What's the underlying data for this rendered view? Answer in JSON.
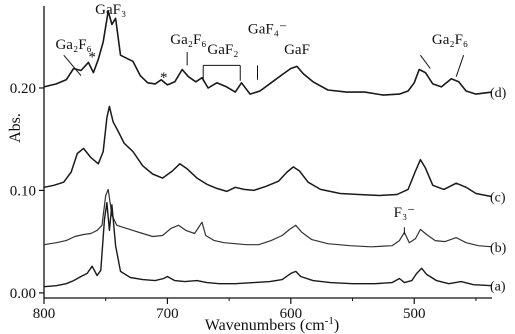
{
  "chart_data": {
    "type": "line",
    "xlabel": "Wavenumbers (cm",
    "xlabel_sup": "-1",
    "xlabel_close": ")",
    "ylabel": "Abs.",
    "xlim": [
      800,
      437
    ],
    "ylim": [
      -0.005,
      0.28
    ],
    "x_ticks": [
      {
        "value": 800,
        "label": "800"
      },
      {
        "value": 700,
        "label": "700"
      },
      {
        "value": 600,
        "label": "600"
      },
      {
        "value": 500,
        "label": "500"
      }
    ],
    "y_ticks": [
      {
        "value": 0.0,
        "label": "0.00"
      },
      {
        "value": 0.1,
        "label": "0.10"
      },
      {
        "value": 0.2,
        "label": "0.20"
      }
    ],
    "annotations": [
      {
        "label": "GaF₃",
        "x": 746,
        "y": 0.272
      },
      {
        "label": "Ga₂F₆",
        "x": 776,
        "y": 0.238
      },
      {
        "label": "*",
        "x": 761,
        "y": 0.226
      },
      {
        "label": "Ga₂F₆",
        "x": 683,
        "y": 0.243
      },
      {
        "label": "*",
        "x": 703,
        "y": 0.206
      },
      {
        "label": "GaF₂",
        "x": 655,
        "y": 0.233
      },
      {
        "label": "GaF₄⁻",
        "x": 619,
        "y": 0.253
      },
      {
        "label": "GaF",
        "x": 595,
        "y": 0.233
      },
      {
        "label": "Ga₂F₆",
        "x": 471,
        "y": 0.243
      },
      {
        "label": "F₃⁻",
        "x": 508,
        "y": 0.074
      }
    ],
    "series": [
      {
        "name": "(d)",
        "color": "#1a1a1a",
        "width": 1.6,
        "points": [
          [
            800,
            0.201
          ],
          [
            790,
            0.204
          ],
          [
            782,
            0.208
          ],
          [
            776,
            0.219
          ],
          [
            770,
            0.217
          ],
          [
            764,
            0.225
          ],
          [
            760,
            0.215
          ],
          [
            756,
            0.228
          ],
          [
            752,
            0.245
          ],
          [
            748,
            0.275
          ],
          [
            745,
            0.262
          ],
          [
            742,
            0.268
          ],
          [
            738,
            0.232
          ],
          [
            733,
            0.229
          ],
          [
            728,
            0.226
          ],
          [
            722,
            0.212
          ],
          [
            716,
            0.205
          ],
          [
            710,
            0.204
          ],
          [
            705,
            0.208
          ],
          [
            700,
            0.203
          ],
          [
            694,
            0.206
          ],
          [
            688,
            0.218
          ],
          [
            683,
            0.211
          ],
          [
            677,
            0.206
          ],
          [
            672,
            0.21
          ],
          [
            667,
            0.2
          ],
          [
            660,
            0.205
          ],
          [
            652,
            0.201
          ],
          [
            645,
            0.196
          ],
          [
            640,
            0.205
          ],
          [
            633,
            0.194
          ],
          [
            625,
            0.197
          ],
          [
            616,
            0.205
          ],
          [
            607,
            0.213
          ],
          [
            600,
            0.219
          ],
          [
            595,
            0.221
          ],
          [
            590,
            0.214
          ],
          [
            582,
            0.206
          ],
          [
            570,
            0.198
          ],
          [
            555,
            0.196
          ],
          [
            540,
            0.196
          ],
          [
            525,
            0.193
          ],
          [
            512,
            0.194
          ],
          [
            505,
            0.197
          ],
          [
            500,
            0.205
          ],
          [
            496,
            0.218
          ],
          [
            491,
            0.215
          ],
          [
            485,
            0.204
          ],
          [
            478,
            0.201
          ],
          [
            470,
            0.209
          ],
          [
            464,
            0.206
          ],
          [
            458,
            0.197
          ],
          [
            450,
            0.194
          ],
          [
            437,
            0.196
          ]
        ]
      },
      {
        "name": "(c)",
        "color": "#1a1a1a",
        "width": 1.5,
        "points": [
          [
            800,
            0.103
          ],
          [
            792,
            0.105
          ],
          [
            784,
            0.108
          ],
          [
            778,
            0.118
          ],
          [
            773,
            0.136
          ],
          [
            768,
            0.141
          ],
          [
            762,
            0.132
          ],
          [
            756,
            0.126
          ],
          [
            752,
            0.138
          ],
          [
            749,
            0.171
          ],
          [
            747,
            0.182
          ],
          [
            744,
            0.167
          ],
          [
            740,
            0.158
          ],
          [
            735,
            0.146
          ],
          [
            728,
            0.138
          ],
          [
            720,
            0.124
          ],
          [
            712,
            0.116
          ],
          [
            704,
            0.112
          ],
          [
            696,
            0.119
          ],
          [
            690,
            0.126
          ],
          [
            684,
            0.121
          ],
          [
            676,
            0.112
          ],
          [
            668,
            0.106
          ],
          [
            660,
            0.102
          ],
          [
            652,
            0.099
          ],
          [
            645,
            0.103
          ],
          [
            638,
            0.101
          ],
          [
            630,
            0.1
          ],
          [
            620,
            0.104
          ],
          [
            610,
            0.109
          ],
          [
            603,
            0.118
          ],
          [
            598,
            0.123
          ],
          [
            593,
            0.119
          ],
          [
            586,
            0.108
          ],
          [
            576,
            0.101
          ],
          [
            560,
            0.097
          ],
          [
            545,
            0.096
          ],
          [
            528,
            0.095
          ],
          [
            514,
            0.096
          ],
          [
            505,
            0.101
          ],
          [
            499,
            0.119
          ],
          [
            495,
            0.13
          ],
          [
            491,
            0.122
          ],
          [
            485,
            0.105
          ],
          [
            476,
            0.101
          ],
          [
            466,
            0.107
          ],
          [
            458,
            0.103
          ],
          [
            450,
            0.097
          ],
          [
            437,
            0.094
          ]
        ]
      },
      {
        "name": "(b)",
        "color": "#333333",
        "width": 1.2,
        "points": [
          [
            800,
            0.047
          ],
          [
            790,
            0.049
          ],
          [
            782,
            0.051
          ],
          [
            775,
            0.055
          ],
          [
            768,
            0.057
          ],
          [
            762,
            0.058
          ],
          [
            757,
            0.061
          ],
          [
            753,
            0.066
          ],
          [
            750,
            0.095
          ],
          [
            748,
            0.101
          ],
          [
            745,
            0.076
          ],
          [
            741,
            0.066
          ],
          [
            736,
            0.064
          ],
          [
            728,
            0.061
          ],
          [
            720,
            0.058
          ],
          [
            712,
            0.055
          ],
          [
            704,
            0.056
          ],
          [
            697,
            0.063
          ],
          [
            691,
            0.066
          ],
          [
            685,
            0.061
          ],
          [
            678,
            0.058
          ],
          [
            672,
            0.069
          ],
          [
            669,
            0.056
          ],
          [
            662,
            0.051
          ],
          [
            654,
            0.049
          ],
          [
            645,
            0.048
          ],
          [
            636,
            0.047
          ],
          [
            626,
            0.047
          ],
          [
            616,
            0.051
          ],
          [
            607,
            0.056
          ],
          [
            601,
            0.062
          ],
          [
            596,
            0.066
          ],
          [
            591,
            0.059
          ],
          [
            583,
            0.052
          ],
          [
            570,
            0.048
          ],
          [
            552,
            0.046
          ],
          [
            535,
            0.045
          ],
          [
            518,
            0.046
          ],
          [
            512,
            0.051
          ],
          [
            508,
            0.059
          ],
          [
            504,
            0.049
          ],
          [
            499,
            0.053
          ],
          [
            495,
            0.062
          ],
          [
            490,
            0.057
          ],
          [
            483,
            0.051
          ],
          [
            475,
            0.05
          ],
          [
            466,
            0.054
          ],
          [
            458,
            0.049
          ],
          [
            448,
            0.046
          ],
          [
            437,
            0.045
          ]
        ]
      },
      {
        "name": "(a)",
        "color": "#1a1a1a",
        "width": 1.4,
        "points": [
          [
            800,
            0.006
          ],
          [
            790,
            0.007
          ],
          [
            782,
            0.009
          ],
          [
            776,
            0.012
          ],
          [
            770,
            0.016
          ],
          [
            765,
            0.019
          ],
          [
            761,
            0.026
          ],
          [
            757,
            0.017
          ],
          [
            754,
            0.022
          ],
          [
            751,
            0.072
          ],
          [
            749,
            0.088
          ],
          [
            747,
            0.061
          ],
          [
            745,
            0.086
          ],
          [
            742,
            0.046
          ],
          [
            738,
            0.021
          ],
          [
            730,
            0.015
          ],
          [
            720,
            0.013
          ],
          [
            710,
            0.012
          ],
          [
            703,
            0.014
          ],
          [
            700,
            0.016
          ],
          [
            694,
            0.012
          ],
          [
            686,
            0.011
          ],
          [
            676,
            0.012
          ],
          [
            668,
            0.01
          ],
          [
            658,
            0.009
          ],
          [
            645,
            0.009
          ],
          [
            630,
            0.01
          ],
          [
            617,
            0.011
          ],
          [
            607,
            0.013
          ],
          [
            600,
            0.019
          ],
          [
            596,
            0.021
          ],
          [
            592,
            0.016
          ],
          [
            582,
            0.012
          ],
          [
            568,
            0.01
          ],
          [
            550,
            0.009
          ],
          [
            532,
            0.009
          ],
          [
            518,
            0.01
          ],
          [
            512,
            0.014
          ],
          [
            508,
            0.01
          ],
          [
            502,
            0.012
          ],
          [
            498,
            0.019
          ],
          [
            494,
            0.024
          ],
          [
            490,
            0.018
          ],
          [
            482,
            0.012
          ],
          [
            472,
            0.009
          ],
          [
            462,
            0.011
          ],
          [
            452,
            0.008
          ],
          [
            437,
            0.007
          ]
        ]
      }
    ]
  }
}
